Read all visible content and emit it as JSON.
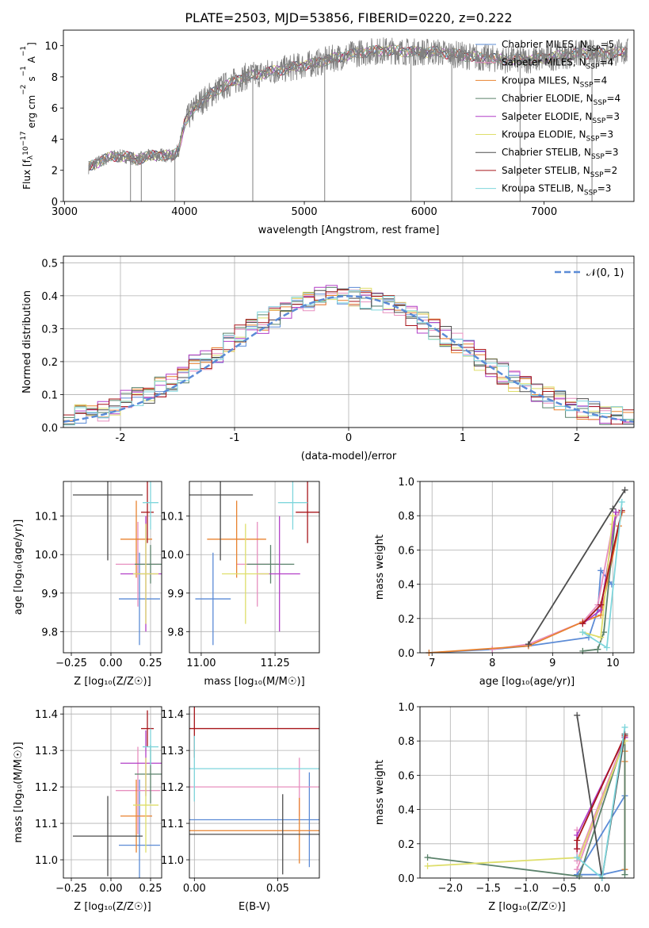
{
  "figure": {
    "title": "PLATE=2503, MJD=53856, FIBERID=0220, z=0.222"
  },
  "colors": {
    "spectrum_data": "#808080",
    "chabrier_miles": "#5b8bd6",
    "salpeter_miles": "#e78fbf",
    "kroupa_miles": "#e8822f",
    "chabrier_elodie": "#5b826b",
    "salpeter_elodie": "#b23fc7",
    "kroupa_elodie": "#dede6a",
    "chabrier_stelib": "#4d4d4d",
    "salpeter_stelib": "#a8161b",
    "kroupa_stelib": "#7fd6dc",
    "gaussian": "#5b8bd6",
    "grid": "#b0b0b0"
  },
  "chart_data": [
    {
      "id": "spectrum",
      "type": "line",
      "xlabel": "wavelength [Angstrom, rest frame]",
      "ylabel": "Flux [f_λ 10^-17 erg cm^-2 s^-1 A^-1]",
      "ylabel_parts": [
        "Flux [f",
        "λ",
        "10",
        "−17",
        " erg cm",
        "−2",
        " s",
        "−1",
        " A",
        "−1",
        "]"
      ],
      "xlim": [
        2990,
        7750
      ],
      "ylim": [
        0,
        11
      ],
      "xticks": [
        3000,
        4000,
        5000,
        6000,
        7000
      ],
      "yticks": [
        0,
        2,
        4,
        6,
        8,
        10
      ],
      "grid": false,
      "legend_position": "top-right",
      "legend": [
        {
          "label": "Chabrier MILES, N",
          "sub": "SSP",
          "suffix": "=5",
          "color_key": "chabrier_miles"
        },
        {
          "label": "Salpeter MILES, N",
          "sub": "SSP",
          "suffix": "=4",
          "color_key": "salpeter_miles"
        },
        {
          "label": "Kroupa MILES, N",
          "sub": "SSP",
          "suffix": "=4",
          "color_key": "kroupa_miles"
        },
        {
          "label": "Chabrier ELODIE, N",
          "sub": "SSP",
          "suffix": "=4",
          "color_key": "chabrier_elodie"
        },
        {
          "label": "Salpeter ELODIE, N",
          "sub": "SSP",
          "suffix": "=3",
          "color_key": "salpeter_elodie"
        },
        {
          "label": "Kroupa ELODIE, N",
          "sub": "SSP",
          "suffix": "=3",
          "color_key": "kroupa_elodie"
        },
        {
          "label": "Chabrier STELIB, N",
          "sub": "SSP",
          "suffix": "=3",
          "color_key": "chabrier_stelib"
        },
        {
          "label": "Salpeter STELIB, N",
          "sub": "SSP",
          "suffix": "=2",
          "color_key": "salpeter_stelib"
        },
        {
          "label": "Kroupa STELIB, N",
          "sub": "SSP",
          "suffix": "=3",
          "color_key": "kroupa_stelib"
        }
      ],
      "continuum": {
        "x": [
          3200,
          3300,
          3400,
          3500,
          3600,
          3700,
          3800,
          3900,
          3950,
          4000,
          4100,
          4300,
          4500,
          4700,
          4900,
          5100,
          5300,
          5500,
          5700,
          5900,
          6100,
          6300,
          6500,
          6700,
          6900,
          7100,
          7300,
          7500,
          7700
        ],
        "y": [
          2.2,
          2.6,
          2.9,
          2.9,
          2.7,
          2.9,
          3.0,
          2.9,
          3.3,
          5.0,
          6.2,
          7.3,
          8.0,
          8.3,
          8.6,
          8.9,
          9.3,
          9.6,
          9.7,
          9.6,
          9.6,
          9.4,
          9.2,
          9.1,
          9.1,
          9.3,
          9.5,
          9.5,
          9.6
        ]
      },
      "absorption_features": [
        {
          "x": 3550,
          "y": 0.0
        },
        {
          "x": 3640,
          "y": 0.0
        },
        {
          "x": 3920,
          "y": 0.0
        },
        {
          "x": 4570,
          "y": 0.0
        },
        {
          "x": 5170,
          "y": 0.0
        },
        {
          "x": 5890,
          "y": 0.0
        },
        {
          "x": 6230,
          "y": 0.0
        },
        {
          "x": 6800,
          "y": 0.0
        },
        {
          "x": 7400,
          "y": 0.0
        }
      ]
    },
    {
      "id": "residuals",
      "type": "histogram",
      "xlabel": "(data-model)/error",
      "ylabel": "Normed distribution",
      "xlim": [
        -2.5,
        2.5
      ],
      "ylim": [
        0,
        0.52
      ],
      "xticks": [
        -2,
        -1,
        0,
        1,
        2
      ],
      "yticks": [
        0.0,
        0.1,
        0.2,
        0.3,
        0.4,
        0.5
      ],
      "grid": true,
      "legend": [
        {
          "label": "𝒩(0, 1)",
          "color_key": "gaussian",
          "dashed": true
        }
      ],
      "bin_width": 0.1,
      "bin_start": -2.5
    },
    {
      "id": "age_vs_Z",
      "type": "scatter",
      "xlabel": "Z [log₁₀(Z/Z☉)]",
      "ylabel": "age  [log₁₀(age/yr)]",
      "xlim": [
        -0.3,
        0.32
      ],
      "ylim": [
        9.745,
        10.19
      ],
      "xticks": [
        -0.25,
        0.0,
        0.25
      ],
      "xtick_labels": [
        "−0.25",
        "0.00",
        "0.25"
      ],
      "yticks": [
        9.8,
        9.9,
        10.0,
        10.1
      ],
      "grid": true
    },
    {
      "id": "age_vs_mass",
      "type": "scatter",
      "xlabel": "mass [log₁₀(M/M☉)]",
      "ylabel": "",
      "xlim": [
        10.96,
        11.4
      ],
      "ylim": [
        9.745,
        10.19
      ],
      "xticks": [
        11.0,
        11.25
      ],
      "xtick_labels": [
        "11.00",
        "11.25"
      ],
      "yticks": [
        9.8,
        9.9,
        10.0,
        10.1
      ],
      "grid": true
    },
    {
      "id": "weight_vs_age",
      "type": "line",
      "xlabel": "age  [log₁₀(age/yr)]",
      "ylabel": "mass weight",
      "xlim": [
        6.8,
        10.35
      ],
      "ylim": [
        0,
        1.0
      ],
      "xticks": [
        7,
        8,
        9,
        10
      ],
      "yticks": [
        0.0,
        0.2,
        0.4,
        0.6,
        0.8,
        1.0
      ],
      "grid": true
    },
    {
      "id": "mass_vs_Z",
      "type": "scatter",
      "xlabel": "Z [log₁₀(Z/Z☉)]",
      "ylabel": "mass [log₁₀(M/M☉)]",
      "xlim": [
        -0.3,
        0.32
      ],
      "ylim": [
        10.95,
        11.42
      ],
      "xticks": [
        -0.25,
        0.0,
        0.25
      ],
      "xtick_labels": [
        "−0.25",
        "0.00",
        "0.25"
      ],
      "yticks": [
        11.0,
        11.1,
        11.2,
        11.3,
        11.4
      ],
      "grid": true
    },
    {
      "id": "mass_vs_ebv",
      "type": "scatter",
      "xlabel": "E(B-V)",
      "ylabel": "",
      "xlim": [
        -0.003,
        0.075
      ],
      "ylim": [
        10.95,
        11.42
      ],
      "xticks": [
        0.0,
        0.05
      ],
      "xtick_labels": [
        "0.00",
        "0.05"
      ],
      "yticks": [
        11.0,
        11.1,
        11.2,
        11.3,
        11.4
      ],
      "grid": true
    },
    {
      "id": "weight_vs_Z",
      "type": "line",
      "xlabel": "Z [log₁₀(Z/Z☉)]",
      "ylabel": "mass weight",
      "xlim": [
        -2.4,
        0.42
      ],
      "ylim": [
        0,
        1.0
      ],
      "xticks": [
        -2.0,
        -1.5,
        -1.0,
        -0.5,
        0.0
      ],
      "xtick_labels": [
        "−2.0",
        "−1.5",
        "−1.0",
        "−0.5",
        "0.0"
      ],
      "yticks": [
        0.0,
        0.2,
        0.4,
        0.6,
        0.8,
        1.0
      ],
      "grid": true
    }
  ],
  "models": [
    {
      "key": "chabrier_miles",
      "Z": 0.18,
      "Zerr": 0.13,
      "age": 9.885,
      "age_err": 0.12,
      "mass": 11.04,
      "mass_err": 0.06,
      "mass_bar": 11.04,
      "mass_bar_err": 0.18,
      "ebv": 0.069,
      "ebv_m": 11.11,
      "ebv_err": 0.13,
      "weights_age": [
        [
          6.95,
          0.0
        ],
        [
          8.0,
          0.02
        ],
        [
          8.6,
          0.04
        ],
        [
          9.6,
          0.09
        ],
        [
          9.75,
          0.25
        ],
        [
          9.8,
          0.48
        ],
        [
          9.98,
          0.4
        ]
      ],
      "weights_Z": [
        [
          -0.33,
          0.02
        ],
        [
          0.3,
          0.48
        ],
        [
          -0.33,
          0.02
        ],
        [
          0.0,
          0.02
        ],
        [
          0.3,
          0.05
        ]
      ]
    },
    {
      "key": "salpeter_miles",
      "Z": 0.17,
      "Zerr": 0.14,
      "age": 9.975,
      "age_err": 0.11,
      "mass": 11.19,
      "mass_err": 0.07,
      "mass_bar": 11.19,
      "mass_bar_err": 0.12,
      "ebv": 0.063,
      "ebv_m": 11.2,
      "ebv_err": 0.08,
      "weights_age": [
        [
          8.0,
          0.02
        ],
        [
          8.6,
          0.05
        ],
        [
          9.5,
          0.18
        ],
        [
          9.75,
          0.28
        ],
        [
          10.0,
          0.75
        ],
        [
          10.1,
          0.82
        ]
      ],
      "weights_Z": [
        [
          -0.33,
          0.28
        ],
        [
          -0.33,
          0.1
        ],
        [
          0.3,
          0.82
        ],
        [
          -0.33,
          0.05
        ]
      ]
    },
    {
      "key": "kroupa_miles",
      "Z": 0.16,
      "Zerr": 0.1,
      "age": 10.04,
      "age_err": 0.1,
      "mass": 11.12,
      "mass_err": 0.1,
      "mass_bar": 11.12,
      "mass_bar_err": 0.1,
      "ebv": 0.063,
      "ebv_m": 11.08,
      "ebv_err": 0.09,
      "weights_age": [
        [
          6.95,
          0.0
        ],
        [
          8.6,
          0.04
        ],
        [
          9.5,
          0.18
        ],
        [
          9.8,
          0.22
        ],
        [
          10.1,
          0.74
        ],
        [
          10.15,
          0.82
        ]
      ],
      "weights_Z": [
        [
          0.3,
          0.05
        ],
        [
          0.3,
          0.74
        ],
        [
          0.3,
          0.82
        ],
        [
          0.3,
          0.68
        ]
      ]
    },
    {
      "key": "chabrier_elodie",
      "Z": 0.25,
      "Zerr": 0.1,
      "age": 9.975,
      "age_err": 0.05,
      "mass": 11.235,
      "mass_err": 0.08,
      "mass_bar": 11.235,
      "mass_bar_err": 0.08,
      "ebv": 0.0,
      "ebv_m": 11.2,
      "ebv_err": 0.0,
      "weights_age": [
        [
          9.5,
          0.01
        ],
        [
          9.75,
          0.02
        ],
        [
          9.85,
          0.12
        ],
        [
          10.05,
          0.82
        ]
      ],
      "weights_Z": [
        [
          -2.3,
          0.12
        ],
        [
          -0.3,
          0.01
        ],
        [
          0.3,
          0.82
        ],
        [
          0.3,
          0.02
        ]
      ]
    },
    {
      "key": "salpeter_elodie",
      "Z": 0.22,
      "Zerr": 0.16,
      "age": 9.95,
      "age_err": 0.15,
      "mass": 11.265,
      "mass_err": 0.07,
      "mass_bar": 11.265,
      "mass_bar_err": 0.09,
      "ebv": 0.0,
      "ebv_m": 11.3,
      "ebv_err": 0.0,
      "weights_age": [
        [
          9.5,
          0.17
        ],
        [
          9.8,
          0.25
        ],
        [
          10.05,
          0.82
        ]
      ],
      "weights_Z": [
        [
          -0.33,
          0.17
        ],
        [
          -0.33,
          0.25
        ],
        [
          0.3,
          0.82
        ]
      ]
    },
    {
      "key": "kroupa_elodie",
      "Z": 0.22,
      "Zerr": 0.08,
      "age": 9.95,
      "age_err": 0.13,
      "mass": 11.15,
      "mass_err": 0.08,
      "mass_bar": 11.15,
      "mass_bar_err": 0.13,
      "ebv": 0.0,
      "ebv_m": 11.1,
      "ebv_err": 0.0,
      "weights_age": [
        [
          9.5,
          0.12
        ],
        [
          9.8,
          0.09
        ],
        [
          10.0,
          0.8
        ]
      ],
      "weights_Z": [
        [
          -2.3,
          0.07
        ],
        [
          -0.3,
          0.12
        ],
        [
          0.3,
          0.8
        ]
      ]
    },
    {
      "key": "chabrier_stelib",
      "Z": -0.02,
      "Zerr": 0.22,
      "age": 10.155,
      "age_err": 0.17,
      "mass": 11.065,
      "mass_err": 0.11,
      "mass_bar": 11.065,
      "mass_bar_err": 0.11,
      "ebv": 0.053,
      "ebv_m": 11.07,
      "ebv_err": 0.11,
      "weights_age": [
        [
          8.6,
          0.05
        ],
        [
          10.0,
          0.84
        ],
        [
          10.2,
          0.95
        ]
      ],
      "weights_Z": [
        [
          -0.33,
          0.95
        ],
        [
          0.0,
          0.0
        ],
        [
          0.3,
          0.84
        ]
      ]
    },
    {
      "key": "salpeter_stelib",
      "Z": 0.23,
      "Zerr": 0.04,
      "age": 10.11,
      "age_err": 0.08,
      "mass": 11.36,
      "mass_err": 0.04,
      "mass_bar": 11.36,
      "mass_bar_err": 0.05,
      "ebv": 0.0,
      "ebv_m": 11.36,
      "ebv_err": 0.08,
      "weights_age": [
        [
          9.5,
          0.17
        ],
        [
          9.8,
          0.28
        ],
        [
          10.15,
          0.83
        ]
      ],
      "weights_Z": [
        [
          -0.33,
          0.17
        ],
        [
          -0.33,
          0.22
        ],
        [
          0.3,
          0.83
        ]
      ]
    },
    {
      "key": "kroupa_stelib",
      "Z": 0.25,
      "Zerr": 0.05,
      "age": 10.135,
      "age_err": 0.07,
      "mass": 11.31,
      "mass_err": 0.05,
      "mass_bar": 11.31,
      "mass_bar_err": 0.05,
      "ebv": 0.0,
      "ebv_m": 11.25,
      "ebv_err": 0.09,
      "weights_age": [
        [
          9.5,
          0.12
        ],
        [
          9.9,
          0.03
        ],
        [
          10.15,
          0.88
        ]
      ],
      "weights_Z": [
        [
          -0.33,
          0.12
        ],
        [
          0.0,
          0.0
        ],
        [
          0.3,
          0.88
        ]
      ]
    }
  ]
}
